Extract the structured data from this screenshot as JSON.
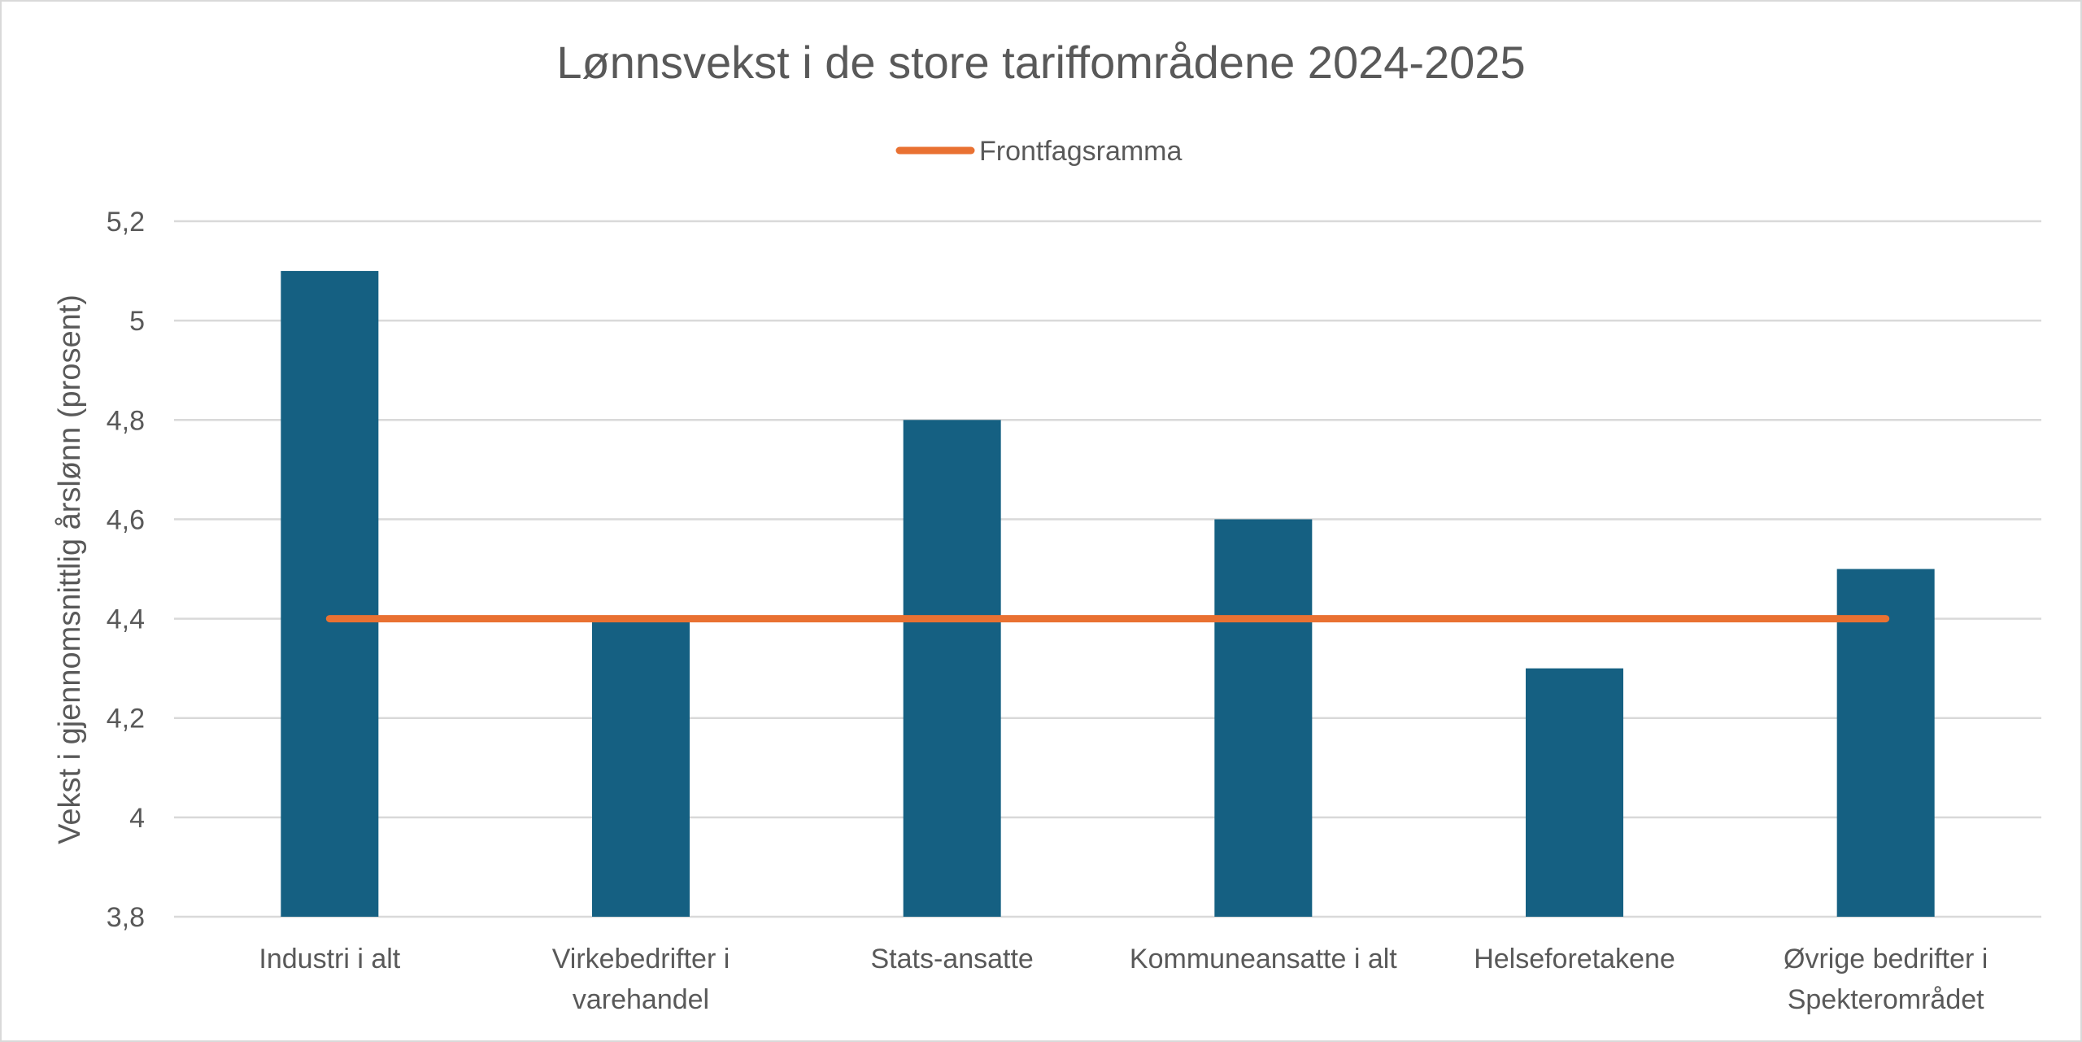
{
  "chart_data": {
    "type": "bar",
    "title": "Lønnsvekst i de store tariffområdene 2024-2025",
    "ylabel": "Vekst i gjennomsnittlig årslønn (prosent)",
    "xlabel": "",
    "ylim": [
      3.8,
      5.2
    ],
    "ytick_step": 0.2,
    "yticks": [
      "3,8",
      "4",
      "4,2",
      "4,4",
      "4,6",
      "4,8",
      "5",
      "5,2"
    ],
    "grid": true,
    "legend_position": "top",
    "categories": [
      [
        "Industri i alt"
      ],
      [
        "Virkebedrifter i",
        "varehandel"
      ],
      [
        "Stats-ansatte"
      ],
      [
        "Kommuneansatte i alt"
      ],
      [
        "Helseforetakene"
      ],
      [
        "Øvrige bedrifter i",
        "Spekterområdet"
      ]
    ],
    "series": [
      {
        "type": "bar",
        "values": [
          5.1,
          4.4,
          4.8,
          4.6,
          4.3,
          4.5
        ],
        "color": "#156082"
      },
      {
        "type": "line",
        "name": "Frontfagsramma",
        "values": [
          4.4,
          4.4,
          4.4,
          4.4,
          4.4,
          4.4
        ],
        "color": "#e97132"
      }
    ]
  }
}
